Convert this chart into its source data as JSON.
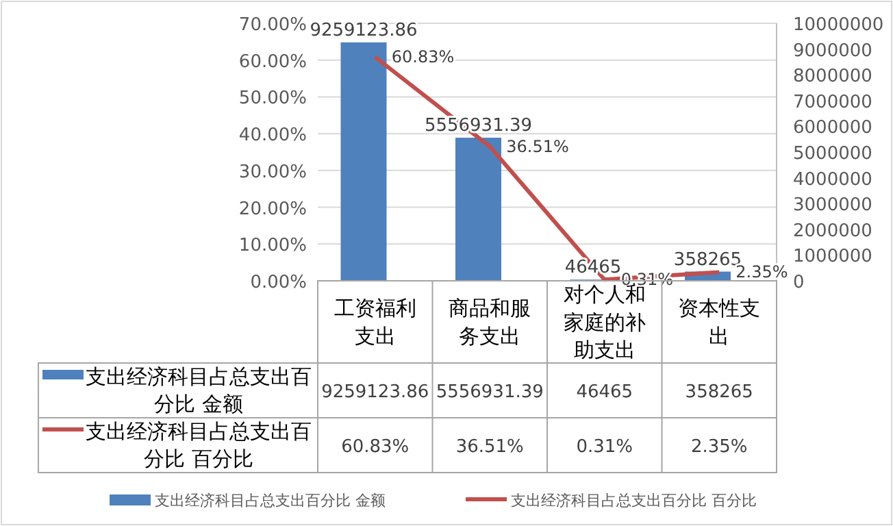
{
  "chart_data": {
    "type": "bar",
    "categories": [
      "工资福利支出",
      "商品和服务支出",
      "对个人和家庭的补助支出",
      "资本性支出"
    ],
    "series": [
      {
        "name": "支出经济科目占总支出百分比 金额",
        "axis": "y2",
        "color": "#4f81bd",
        "values": [
          9259123.86,
          5556931.39,
          46465,
          358265
        ],
        "value_labels": [
          "9259123.86",
          "5556931.39",
          "46465",
          "358265"
        ]
      },
      {
        "name": "支出经济科目占总支出百分比 百分比",
        "type": "line",
        "axis": "y",
        "color": "#c0504d",
        "values": [
          60.83,
          36.51,
          0.31,
          2.35
        ],
        "value_labels": [
          "60.83%",
          "36.51%",
          "0.31%",
          "2.35%"
        ]
      }
    ],
    "ylim": [
      0,
      70
    ],
    "yticks": [
      {
        "value": 0,
        "label": "0.00%"
      },
      {
        "value": 10,
        "label": "10.00%"
      },
      {
        "value": 20,
        "label": "20.00%"
      },
      {
        "value": 30,
        "label": "30.00%"
      },
      {
        "value": 40,
        "label": "40.00%"
      },
      {
        "value": 50,
        "label": "50.00%"
      },
      {
        "value": 60,
        "label": "60.00%"
      },
      {
        "value": 70,
        "label": "70.00%"
      }
    ],
    "y2lim": [
      0,
      10000000
    ],
    "y2ticks": [
      0,
      1000000,
      2000000,
      3000000,
      4000000,
      5000000,
      6000000,
      7000000,
      8000000,
      9000000,
      10000000
    ],
    "grid": "y",
    "legend": "bottom",
    "line_style": "solid"
  }
}
